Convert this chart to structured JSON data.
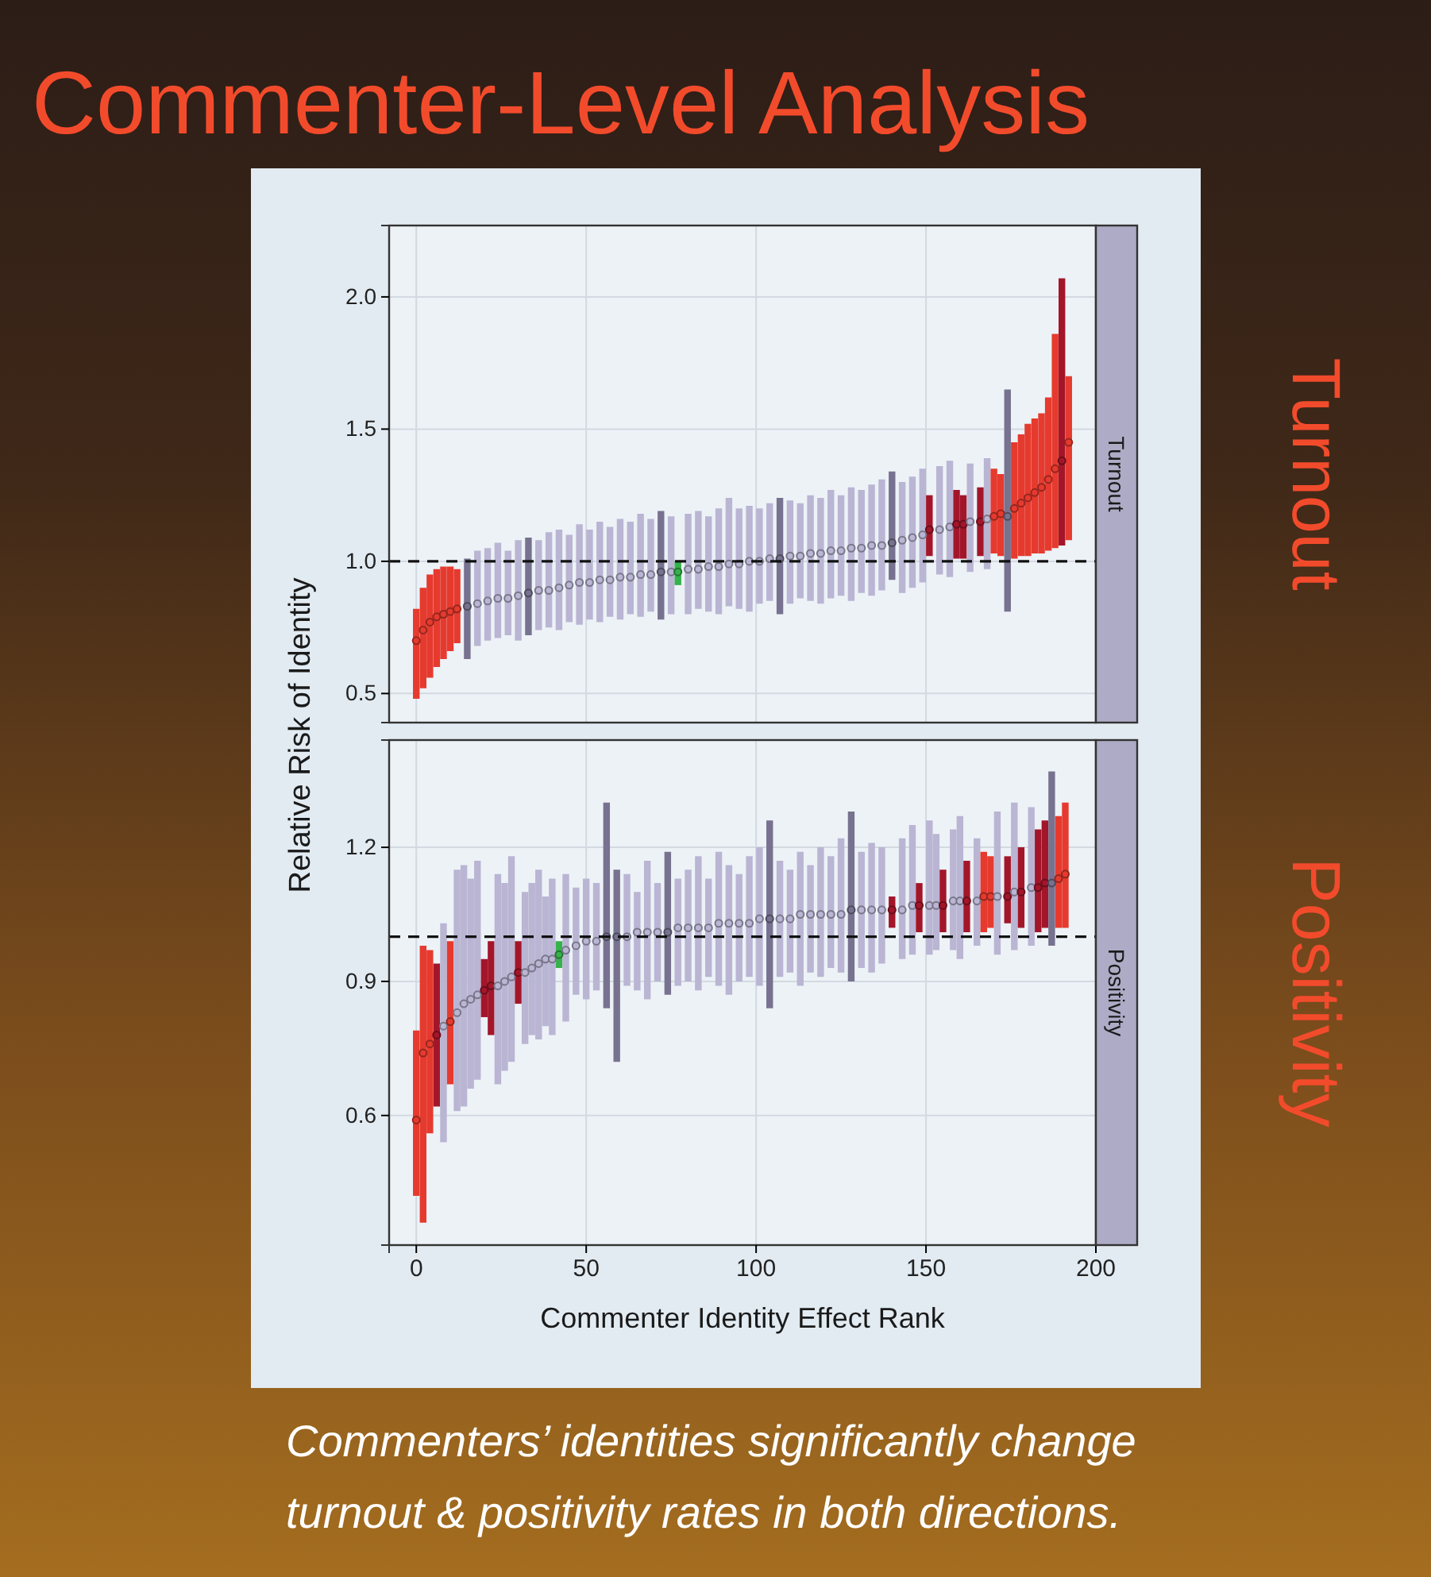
{
  "chart_data": [
    {
      "type": "scatter",
      "title": "Commenter-Level Analysis",
      "subtitle": "Turnout",
      "ylabel": "Relative Risk of Identity",
      "annotations": [
        "Turnout"
      ],
      "x": [
        0,
        2,
        4,
        6,
        8,
        10,
        12,
        15,
        18,
        21,
        24,
        27,
        30,
        33,
        36,
        39,
        42,
        45,
        48,
        51,
        54,
        57,
        60,
        63,
        66,
        69,
        72,
        75,
        77,
        80,
        83,
        86,
        89,
        92,
        95,
        98,
        101,
        104,
        107,
        110,
        113,
        116,
        119,
        122,
        125,
        128,
        131,
        134,
        137,
        140,
        143,
        146,
        149,
        151,
        154,
        157,
        159,
        161,
        163,
        166,
        168,
        170,
        172,
        174,
        176,
        178,
        180,
        182,
        184,
        186,
        188,
        190,
        192
      ],
      "series": [
        {
          "values": [
            0.7,
            0.74,
            0.77,
            0.79,
            0.8,
            0.81,
            0.82,
            0.83,
            0.84,
            0.85,
            0.86,
            0.86,
            0.87,
            0.88,
            0.89,
            0.89,
            0.9,
            0.91,
            0.92,
            0.92,
            0.93,
            0.93,
            0.94,
            0.94,
            0.95,
            0.95,
            0.96,
            0.96,
            0.96,
            0.97,
            0.97,
            0.98,
            0.98,
            0.99,
            0.99,
            1.0,
            1.0,
            1.01,
            1.01,
            1.02,
            1.02,
            1.03,
            1.03,
            1.04,
            1.04,
            1.05,
            1.05,
            1.06,
            1.06,
            1.07,
            1.08,
            1.09,
            1.1,
            1.12,
            1.12,
            1.13,
            1.14,
            1.14,
            1.15,
            1.15,
            1.16,
            1.17,
            1.18,
            1.17,
            1.2,
            1.22,
            1.24,
            1.26,
            1.28,
            1.31,
            1.35,
            1.38,
            1.45
          ],
          "errors": [
            [
              0.48,
              0.82
            ],
            [
              0.52,
              0.9
            ],
            [
              0.56,
              0.95
            ],
            [
              0.6,
              0.97
            ],
            [
              0.63,
              0.98
            ],
            [
              0.66,
              0.98
            ],
            [
              0.69,
              0.97
            ],
            [
              0.63,
              1.01
            ],
            [
              0.68,
              1.04
            ],
            [
              0.7,
              1.05
            ],
            [
              0.71,
              1.07
            ],
            [
              0.72,
              1.04
            ],
            [
              0.7,
              1.08
            ],
            [
              0.72,
              1.09
            ],
            [
              0.74,
              1.08
            ],
            [
              0.75,
              1.11
            ],
            [
              0.74,
              1.12
            ],
            [
              0.77,
              1.1
            ],
            [
              0.76,
              1.14
            ],
            [
              0.78,
              1.12
            ],
            [
              0.77,
              1.15
            ],
            [
              0.79,
              1.13
            ],
            [
              0.78,
              1.16
            ],
            [
              0.8,
              1.15
            ],
            [
              0.79,
              1.18
            ],
            [
              0.81,
              1.16
            ],
            [
              0.78,
              1.19
            ],
            [
              0.8,
              1.17
            ],
            [
              0.91,
              1.0
            ],
            [
              0.8,
              1.18
            ],
            [
              0.82,
              1.19
            ],
            [
              0.81,
              1.17
            ],
            [
              0.8,
              1.2
            ],
            [
              0.83,
              1.24
            ],
            [
              0.82,
              1.2
            ],
            [
              0.81,
              1.21
            ],
            [
              0.84,
              1.2
            ],
            [
              0.85,
              1.22
            ],
            [
              0.8,
              1.24
            ],
            [
              0.84,
              1.23
            ],
            [
              0.86,
              1.22
            ],
            [
              0.85,
              1.25
            ],
            [
              0.84,
              1.24
            ],
            [
              0.86,
              1.27
            ],
            [
              0.87,
              1.25
            ],
            [
              0.85,
              1.28
            ],
            [
              0.88,
              1.27
            ],
            [
              0.87,
              1.29
            ],
            [
              0.89,
              1.31
            ],
            [
              0.93,
              1.34
            ],
            [
              0.88,
              1.3
            ],
            [
              0.9,
              1.32
            ],
            [
              0.92,
              1.35
            ],
            [
              1.02,
              1.25
            ],
            [
              0.95,
              1.36
            ],
            [
              0.94,
              1.38
            ],
            [
              1.01,
              1.27
            ],
            [
              1.01,
              1.25
            ],
            [
              0.96,
              1.37
            ],
            [
              1.02,
              1.28
            ],
            [
              0.97,
              1.39
            ],
            [
              1.03,
              1.35
            ],
            [
              1.02,
              1.33
            ],
            [
              0.81,
              1.65
            ],
            [
              1.01,
              1.45
            ],
            [
              1.02,
              1.48
            ],
            [
              1.02,
              1.52
            ],
            [
              1.03,
              1.54
            ],
            [
              1.03,
              1.56
            ],
            [
              1.04,
              1.62
            ],
            [
              1.05,
              1.86
            ],
            [
              1.06,
              2.07
            ],
            [
              1.08,
              1.7
            ]
          ],
          "colors": [
            "#e63a2e",
            "#e63a2e",
            "#e63a2e",
            "#e63a2e",
            "#e63a2e",
            "#e63a2e",
            "#e63a2e",
            "#77728f",
            "#b9b5d3",
            "#b9b5d3",
            "#b9b5d3",
            "#b9b5d3",
            "#b9b5d3",
            "#77728f",
            "#b9b5d3",
            "#b9b5d3",
            "#b9b5d3",
            "#b9b5d3",
            "#b9b5d3",
            "#b9b5d3",
            "#b9b5d3",
            "#b9b5d3",
            "#b9b5d3",
            "#b9b5d3",
            "#b9b5d3",
            "#b9b5d3",
            "#77728f",
            "#b9b5d3",
            "#35b24a",
            "#b9b5d3",
            "#b9b5d3",
            "#b9b5d3",
            "#b9b5d3",
            "#b9b5d3",
            "#b9b5d3",
            "#b9b5d3",
            "#b9b5d3",
            "#b9b5d3",
            "#77728f",
            "#b9b5d3",
            "#b9b5d3",
            "#b9b5d3",
            "#b9b5d3",
            "#b9b5d3",
            "#b9b5d3",
            "#b9b5d3",
            "#b9b5d3",
            "#b9b5d3",
            "#b9b5d3",
            "#77728f",
            "#b9b5d3",
            "#b9b5d3",
            "#b9b5d3",
            "#a3162a",
            "#b9b5d3",
            "#b9b5d3",
            "#a3162a",
            "#a3162a",
            "#b9b5d3",
            "#a3162a",
            "#b9b5d3",
            "#e63a2e",
            "#e63a2e",
            "#77728f",
            "#e63a2e",
            "#e63a2e",
            "#e63a2e",
            "#e63a2e",
            "#e63a2e",
            "#e63a2e",
            "#e63a2e",
            "#a3162a",
            "#e63a2e"
          ]
        }
      ],
      "xlim": [
        -8,
        200
      ],
      "xticks": [
        0,
        50,
        100,
        150,
        200
      ],
      "ylim": [
        0.39,
        2.27
      ],
      "yticks": [
        0.5,
        {
          "value": 1,
          "label": "1.0"
        },
        1.5,
        {
          "value": 2,
          "label": "2.0"
        }
      ],
      "tick_labels": "y",
      "grid": true,
      "marker": "circle",
      "ref_lines": [
        {
          "axis": "y",
          "value": 1,
          "color": "#111111",
          "line_style": "dashed"
        }
      ]
    },
    {
      "type": "scatter",
      "subtitle": "Positivity",
      "xlabel": "Commenter Identity Effect Rank",
      "annotations": [
        "Positivity",
        "Commenters’ identities significantly change turnout & positivity rates in both directions."
      ],
      "x": [
        0,
        2,
        4,
        6,
        8,
        10,
        12,
        14,
        16,
        18,
        20,
        22,
        24,
        26,
        28,
        30,
        32,
        34,
        36,
        38,
        40,
        42,
        44,
        47,
        50,
        53,
        56,
        59,
        62,
        65,
        68,
        71,
        74,
        77,
        80,
        83,
        86,
        89,
        92,
        95,
        98,
        101,
        104,
        107,
        110,
        113,
        116,
        119,
        122,
        125,
        128,
        131,
        134,
        137,
        140,
        143,
        146,
        148,
        151,
        153,
        155,
        158,
        160,
        162,
        165,
        167,
        169,
        171,
        174,
        176,
        178,
        181,
        183,
        185,
        187,
        189,
        191
      ],
      "series": [
        {
          "values": [
            0.59,
            0.74,
            0.76,
            0.78,
            0.8,
            0.81,
            0.83,
            0.85,
            0.86,
            0.87,
            0.88,
            0.89,
            0.89,
            0.9,
            0.91,
            0.92,
            0.92,
            0.93,
            0.94,
            0.95,
            0.95,
            0.96,
            0.97,
            0.98,
            0.99,
            0.99,
            1.0,
            1.0,
            1.0,
            1.01,
            1.01,
            1.01,
            1.01,
            1.02,
            1.02,
            1.02,
            1.02,
            1.03,
            1.03,
            1.03,
            1.03,
            1.04,
            1.04,
            1.04,
            1.04,
            1.05,
            1.05,
            1.05,
            1.05,
            1.05,
            1.06,
            1.06,
            1.06,
            1.06,
            1.06,
            1.06,
            1.07,
            1.07,
            1.07,
            1.07,
            1.07,
            1.08,
            1.08,
            1.08,
            1.08,
            1.09,
            1.09,
            1.09,
            1.09,
            1.1,
            1.1,
            1.11,
            1.11,
            1.12,
            1.12,
            1.13,
            1.14
          ],
          "errors": [
            [
              0.42,
              0.79
            ],
            [
              0.36,
              0.98
            ],
            [
              0.56,
              0.97
            ],
            [
              0.62,
              0.94
            ],
            [
              0.54,
              1.03
            ],
            [
              0.67,
              0.99
            ],
            [
              0.61,
              1.15
            ],
            [
              0.62,
              1.16
            ],
            [
              0.66,
              1.13
            ],
            [
              0.68,
              1.17
            ],
            [
              0.82,
              0.95
            ],
            [
              0.78,
              0.99
            ],
            [
              0.67,
              1.14
            ],
            [
              0.7,
              1.12
            ],
            [
              0.72,
              1.18
            ],
            [
              0.85,
              0.99
            ],
            [
              0.76,
              1.1
            ],
            [
              0.78,
              1.12
            ],
            [
              0.77,
              1.15
            ],
            [
              0.8,
              1.09
            ],
            [
              0.78,
              1.13
            ],
            [
              0.93,
              0.99
            ],
            [
              0.81,
              1.14
            ],
            [
              0.87,
              1.11
            ],
            [
              0.86,
              1.13
            ],
            [
              0.88,
              1.12
            ],
            [
              0.84,
              1.3
            ],
            [
              0.72,
              1.15
            ],
            [
              0.89,
              1.14
            ],
            [
              0.88,
              1.1
            ],
            [
              0.86,
              1.17
            ],
            [
              0.9,
              1.12
            ],
            [
              0.87,
              1.19
            ],
            [
              0.89,
              1.13
            ],
            [
              0.9,
              1.15
            ],
            [
              0.88,
              1.18
            ],
            [
              0.91,
              1.13
            ],
            [
              0.89,
              1.19
            ],
            [
              0.87,
              1.16
            ],
            [
              0.9,
              1.14
            ],
            [
              0.91,
              1.18
            ],
            [
              0.89,
              1.2
            ],
            [
              0.84,
              1.26
            ],
            [
              0.91,
              1.17
            ],
            [
              0.92,
              1.15
            ],
            [
              0.89,
              1.19
            ],
            [
              0.92,
              1.16
            ],
            [
              0.91,
              1.2
            ],
            [
              0.93,
              1.18
            ],
            [
              0.92,
              1.22
            ],
            [
              0.9,
              1.28
            ],
            [
              0.93,
              1.19
            ],
            [
              0.92,
              1.21
            ],
            [
              0.94,
              1.2
            ],
            [
              1.02,
              1.09
            ],
            [
              0.95,
              1.22
            ],
            [
              0.96,
              1.25
            ],
            [
              1.01,
              1.12
            ],
            [
              0.96,
              1.26
            ],
            [
              0.97,
              1.23
            ],
            [
              1.01,
              1.15
            ],
            [
              0.97,
              1.24
            ],
            [
              0.95,
              1.27
            ],
            [
              1.01,
              1.17
            ],
            [
              0.98,
              1.22
            ],
            [
              1.01,
              1.19
            ],
            [
              1.02,
              1.18
            ],
            [
              0.96,
              1.28
            ],
            [
              1.03,
              1.18
            ],
            [
              0.97,
              1.3
            ],
            [
              1.02,
              1.2
            ],
            [
              0.98,
              1.29
            ],
            [
              1.01,
              1.24
            ],
            [
              1.02,
              1.26
            ],
            [
              0.98,
              1.37
            ],
            [
              1.02,
              1.27
            ],
            [
              1.02,
              1.3
            ]
          ],
          "colors": [
            "#e63a2e",
            "#e63a2e",
            "#e63a2e",
            "#a3162a",
            "#b9b5d3",
            "#e63a2e",
            "#b9b5d3",
            "#b9b5d3",
            "#b9b5d3",
            "#b9b5d3",
            "#a3162a",
            "#a3162a",
            "#b9b5d3",
            "#b9b5d3",
            "#b9b5d3",
            "#a3162a",
            "#b9b5d3",
            "#b9b5d3",
            "#b9b5d3",
            "#b9b5d3",
            "#b9b5d3",
            "#35b24a",
            "#b9b5d3",
            "#b9b5d3",
            "#b9b5d3",
            "#b9b5d3",
            "#77728f",
            "#77728f",
            "#b9b5d3",
            "#b9b5d3",
            "#b9b5d3",
            "#b9b5d3",
            "#77728f",
            "#b9b5d3",
            "#b9b5d3",
            "#b9b5d3",
            "#b9b5d3",
            "#b9b5d3",
            "#b9b5d3",
            "#b9b5d3",
            "#b9b5d3",
            "#b9b5d3",
            "#77728f",
            "#b9b5d3",
            "#b9b5d3",
            "#b9b5d3",
            "#b9b5d3",
            "#b9b5d3",
            "#b9b5d3",
            "#b9b5d3",
            "#77728f",
            "#b9b5d3",
            "#b9b5d3",
            "#b9b5d3",
            "#a3162a",
            "#b9b5d3",
            "#b9b5d3",
            "#a3162a",
            "#b9b5d3",
            "#b9b5d3",
            "#a3162a",
            "#b9b5d3",
            "#b9b5d3",
            "#a3162a",
            "#b9b5d3",
            "#e63a2e",
            "#e63a2e",
            "#b9b5d3",
            "#a3162a",
            "#b9b5d3",
            "#a3162a",
            "#b9b5d3",
            "#a3162a",
            "#a3162a",
            "#77728f",
            "#e63a2e",
            "#e63a2e"
          ]
        }
      ],
      "xlim": [
        -8,
        200
      ],
      "xticks": [
        0,
        50,
        100,
        150,
        200
      ],
      "ylim": [
        0.31,
        1.44
      ],
      "yticks": [
        0.6,
        0.9,
        1.2
      ],
      "grid": true,
      "marker": "circle",
      "ref_lines": [
        {
          "axis": "y",
          "value": 1,
          "color": "#111111",
          "line_style": "dashed"
        }
      ]
    }
  ]
}
